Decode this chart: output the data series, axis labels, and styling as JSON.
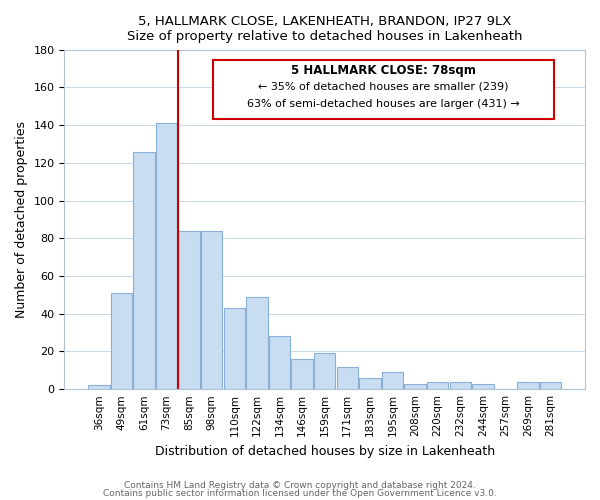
{
  "title1": "5, HALLMARK CLOSE, LAKENHEATH, BRANDON, IP27 9LX",
  "title2": "Size of property relative to detached houses in Lakenheath",
  "xlabel": "Distribution of detached houses by size in Lakenheath",
  "ylabel": "Number of detached properties",
  "categories": [
    "36sqm",
    "49sqm",
    "61sqm",
    "73sqm",
    "85sqm",
    "98sqm",
    "110sqm",
    "122sqm",
    "134sqm",
    "146sqm",
    "159sqm",
    "171sqm",
    "183sqm",
    "195sqm",
    "208sqm",
    "220sqm",
    "232sqm",
    "244sqm",
    "257sqm",
    "269sqm",
    "281sqm"
  ],
  "values": [
    2,
    51,
    126,
    141,
    84,
    84,
    43,
    49,
    28,
    16,
    19,
    12,
    6,
    9,
    3,
    4,
    4,
    3,
    0,
    4,
    4
  ],
  "bar_color": "#c9ddf2",
  "bar_edge_color": "#89afd4",
  "vline_color": "#cc0000",
  "vline_index": 3.5,
  "annotation_line1": "5 HALLMARK CLOSE: 78sqm",
  "annotation_line2": "← 35% of detached houses are smaller (239)",
  "annotation_line3": "63% of semi-detached houses are larger (431) →",
  "ylim": [
    0,
    180
  ],
  "yticks": [
    0,
    20,
    40,
    60,
    80,
    100,
    120,
    140,
    160,
    180
  ],
  "footer1": "Contains HM Land Registry data © Crown copyright and database right 2024.",
  "footer2": "Contains public sector information licensed under the Open Government Licence v3.0."
}
